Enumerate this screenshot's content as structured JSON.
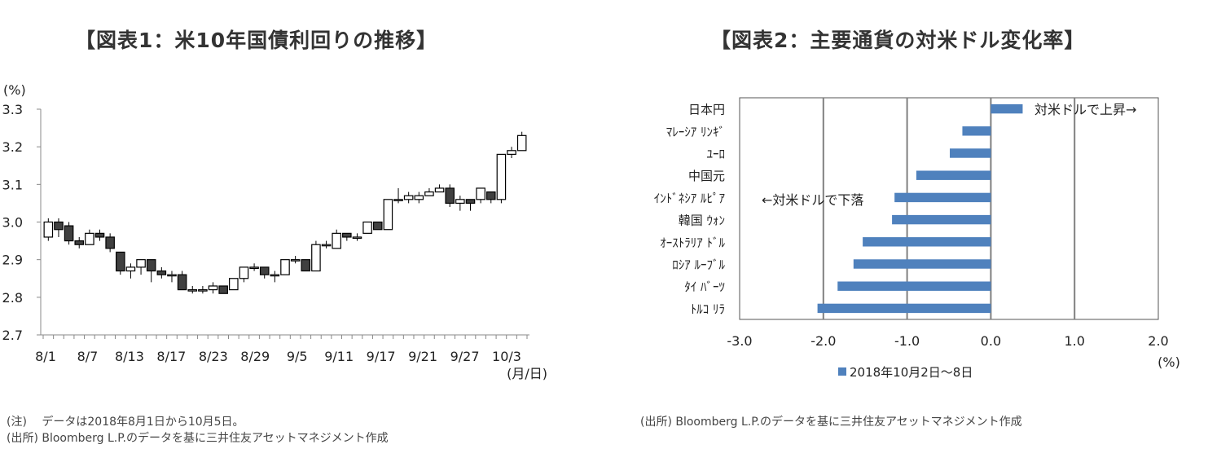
{
  "chart_data": [
    {
      "type": "candlestick",
      "title": "【図表1：米10年国債利回りの推移】",
      "ylabel": "(%)",
      "xlabel": "(月/日)",
      "ylim": [
        2.7,
        3.3
      ],
      "yticks": [
        "3.3",
        "3.2",
        "3.1",
        "3.0",
        "2.9",
        "2.8",
        "2.7"
      ],
      "xticks": [
        "8/1",
        "8/7",
        "8/13",
        "8/17",
        "8/23",
        "8/29",
        "9/5",
        "9/11",
        "9/17",
        "9/21",
        "9/27",
        "10/3"
      ],
      "candles": [
        {
          "o": 2.96,
          "c": 3.0,
          "h": 3.01,
          "l": 2.95
        },
        {
          "o": 3.0,
          "c": 2.98,
          "h": 3.01,
          "l": 2.96
        },
        {
          "o": 2.99,
          "c": 2.95,
          "h": 3.0,
          "l": 2.94
        },
        {
          "o": 2.95,
          "c": 2.94,
          "h": 2.96,
          "l": 2.93
        },
        {
          "o": 2.94,
          "c": 2.97,
          "h": 2.98,
          "l": 2.94
        },
        {
          "o": 2.97,
          "c": 2.96,
          "h": 2.98,
          "l": 2.95
        },
        {
          "o": 2.96,
          "c": 2.93,
          "h": 2.97,
          "l": 2.92
        },
        {
          "o": 2.92,
          "c": 2.87,
          "h": 2.92,
          "l": 2.86
        },
        {
          "o": 2.87,
          "c": 2.88,
          "h": 2.89,
          "l": 2.85
        },
        {
          "o": 2.88,
          "c": 2.9,
          "h": 2.9,
          "l": 2.86
        },
        {
          "o": 2.9,
          "c": 2.87,
          "h": 2.9,
          "l": 2.84
        },
        {
          "o": 2.87,
          "c": 2.86,
          "h": 2.88,
          "l": 2.85
        },
        {
          "o": 2.86,
          "c": 2.86,
          "h": 2.87,
          "l": 2.84
        },
        {
          "o": 2.86,
          "c": 2.82,
          "h": 2.87,
          "l": 2.82
        },
        {
          "o": 2.82,
          "c": 2.82,
          "h": 2.83,
          "l": 2.81
        },
        {
          "o": 2.82,
          "c": 2.82,
          "h": 2.83,
          "l": 2.81
        },
        {
          "o": 2.82,
          "c": 2.83,
          "h": 2.84,
          "l": 2.81
        },
        {
          "o": 2.83,
          "c": 2.81,
          "h": 2.83,
          "l": 2.81
        },
        {
          "o": 2.82,
          "c": 2.85,
          "h": 2.85,
          "l": 2.82
        },
        {
          "o": 2.85,
          "c": 2.88,
          "h": 2.88,
          "l": 2.84
        },
        {
          "o": 2.88,
          "c": 2.88,
          "h": 2.89,
          "l": 2.87
        },
        {
          "o": 2.88,
          "c": 2.86,
          "h": 2.88,
          "l": 2.85
        },
        {
          "o": 2.86,
          "c": 2.86,
          "h": 2.87,
          "l": 2.84
        },
        {
          "o": 2.86,
          "c": 2.9,
          "h": 2.9,
          "l": 2.86
        },
        {
          "o": 2.9,
          "c": 2.9,
          "h": 2.91,
          "l": 2.89
        },
        {
          "o": 2.9,
          "c": 2.87,
          "h": 2.9,
          "l": 2.87
        },
        {
          "o": 2.87,
          "c": 2.94,
          "h": 2.95,
          "l": 2.87
        },
        {
          "o": 2.94,
          "c": 2.94,
          "h": 2.95,
          "l": 2.93
        },
        {
          "o": 2.93,
          "c": 2.97,
          "h": 2.98,
          "l": 2.93
        },
        {
          "o": 2.97,
          "c": 2.96,
          "h": 2.97,
          "l": 2.95
        },
        {
          "o": 2.96,
          "c": 2.96,
          "h": 2.97,
          "l": 2.95
        },
        {
          "o": 2.97,
          "c": 3.0,
          "h": 3.0,
          "l": 2.97
        },
        {
          "o": 3.0,
          "c": 2.98,
          "h": 3.0,
          "l": 2.98
        },
        {
          "o": 2.98,
          "c": 3.06,
          "h": 3.06,
          "l": 2.98
        },
        {
          "o": 3.06,
          "c": 3.06,
          "h": 3.09,
          "l": 3.05
        },
        {
          "o": 3.06,
          "c": 3.07,
          "h": 3.08,
          "l": 3.05
        },
        {
          "o": 3.06,
          "c": 3.07,
          "h": 3.08,
          "l": 3.05
        },
        {
          "o": 3.07,
          "c": 3.08,
          "h": 3.09,
          "l": 3.07
        },
        {
          "o": 3.08,
          "c": 3.09,
          "h": 3.1,
          "l": 3.08
        },
        {
          "o": 3.09,
          "c": 3.05,
          "h": 3.1,
          "l": 3.04
        },
        {
          "o": 3.05,
          "c": 3.06,
          "h": 3.07,
          "l": 3.03
        },
        {
          "o": 3.06,
          "c": 3.05,
          "h": 3.06,
          "l": 3.03
        },
        {
          "o": 3.06,
          "c": 3.09,
          "h": 3.09,
          "l": 3.05
        },
        {
          "o": 3.08,
          "c": 3.06,
          "h": 3.08,
          "l": 3.05
        },
        {
          "o": 3.06,
          "c": 3.18,
          "h": 3.18,
          "l": 3.05
        },
        {
          "o": 3.18,
          "c": 3.19,
          "h": 3.2,
          "l": 3.17
        },
        {
          "o": 3.19,
          "c": 3.23,
          "h": 3.24,
          "l": 3.19
        }
      ],
      "up_color": "#ffffff",
      "down_color": "#404040"
    },
    {
      "type": "bar",
      "orientation": "horizontal",
      "title": "【図表2：主要通貨の対米ドル変化率】",
      "categories": [
        "日本円",
        "ﾏﾚｰｼｱ ﾘﾝｷﾞ",
        "ﾕｰﾛ",
        "中国元",
        "ｲﾝﾄﾞﾈｼｱ ﾙﾋﾟｱ",
        "韓国 ｳｫﾝ",
        "ｵｰｽﾄﾗﾘｱ ﾄﾞﾙ",
        "ﾛｼｱ ﾙｰﾌﾞﾙ",
        "ﾀｲ ﾊﾞｰﾂ",
        "ﾄﾙｺ ﾘﾗ"
      ],
      "series": [
        {
          "name": "2018年10月2日～8日",
          "values": [
            0.38,
            -0.34,
            -0.49,
            -0.89,
            -1.15,
            -1.18,
            -1.53,
            -1.64,
            -1.83,
            -2.07
          ]
        }
      ],
      "xlim": [
        -3.0,
        2.0
      ],
      "xticks": [
        "-3.0",
        "-2.0",
        "-1.0",
        "0.0",
        "1.0",
        "2.0"
      ],
      "xlabel": "(%)",
      "annotations": [
        "対米ドルで上昇→",
        "←対米ドルで下落"
      ],
      "bar_color": "#4f81bd",
      "legend": "bottom"
    }
  ],
  "notes": {
    "left_note": "(注)　 データは2018年8月1日から10月5日。",
    "left_source": "(出所)  Bloomberg L.P.のデータを基に三井住友アセットマネジメント作成",
    "right_source": "(出所)  Bloomberg L.P.のデータを基に三井住友アセットマネジメント作成"
  }
}
